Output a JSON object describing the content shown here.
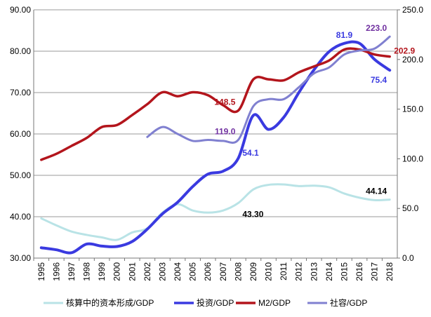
{
  "chart_data": {
    "type": "line",
    "title": "",
    "x": [
      "1995",
      "1996",
      "1997",
      "1998",
      "1999",
      "2000",
      "2001",
      "2002",
      "2003",
      "2004",
      "2005",
      "2006",
      "2007",
      "2008",
      "2009",
      "2010",
      "2011",
      "2012",
      "2013",
      "2014",
      "2015",
      "2016",
      "2017",
      "2018"
    ],
    "y_left": {
      "min": 30,
      "max": 90,
      "ticks": [
        "30.00",
        "40.00",
        "50.00",
        "60.00",
        "70.00",
        "80.00",
        "90.00"
      ],
      "tick_values": [
        30,
        40,
        50,
        60,
        70,
        80,
        90
      ]
    },
    "y_right": {
      "min": 0,
      "max": 250,
      "ticks": [
        "0.0",
        "50.0",
        "100.0",
        "150.0",
        "200.0",
        "250.0"
      ],
      "tick_values": [
        0,
        50,
        100,
        150,
        200,
        250
      ]
    },
    "grid": true,
    "legend_position": "bottom",
    "series": [
      {
        "name": "核算中的资本形成/GDP",
        "axis": "left",
        "color": "#b9e3e6",
        "values": [
          39.6,
          37.9,
          36.4,
          35.6,
          35.0,
          34.4,
          36.2,
          37.2,
          41.0,
          43.0,
          41.5,
          41.0,
          41.5,
          43.3,
          46.6,
          47.7,
          47.8,
          47.4,
          47.5,
          47.1,
          45.6,
          44.6,
          44.0,
          44.14
        ]
      },
      {
        "name": "投资/GDP",
        "axis": "left",
        "color": "#3a3ae0",
        "values": [
          32.5,
          32.0,
          31.3,
          33.4,
          32.9,
          32.8,
          34.0,
          37.0,
          40.7,
          43.5,
          47.3,
          50.3,
          51.0,
          54.1,
          64.5,
          61.1,
          64.0,
          70.0,
          75.5,
          79.9,
          81.9,
          81.9,
          78.0,
          75.4
        ]
      },
      {
        "name": "M2/GDP",
        "axis": "right",
        "color": "#b3151c",
        "values": [
          99,
          105,
          113,
          121,
          132,
          134,
          144,
          155,
          167,
          163,
          167,
          164,
          154,
          148.5,
          180,
          180,
          179,
          187,
          193,
          199,
          210,
          210,
          205,
          202.9
        ]
      },
      {
        "name": "社容/GDP",
        "axis": "right",
        "color": "#8080d0",
        "values": [
          null,
          null,
          null,
          null,
          null,
          null,
          null,
          122,
          132,
          125,
          118,
          119,
          118,
          119.0,
          153,
          160,
          160,
          172,
          186,
          192,
          205,
          209,
          211,
          223.0
        ]
      }
    ],
    "annotations": [
      {
        "text": "81.9",
        "series": "投资/GDP",
        "index": 20,
        "color": "#3a3ae0",
        "pos": "above"
      },
      {
        "text": "75.4",
        "series": "投资/GDP",
        "index": 23,
        "color": "#3a3ae0",
        "pos": "below-left"
      },
      {
        "text": "54.1",
        "series": "投资/GDP",
        "index": 13,
        "color": "#3a3ae0",
        "pos": "right"
      },
      {
        "text": "43.30",
        "series": "核算中的资本形成/GDP",
        "index": 13,
        "color": "#000000",
        "pos": "below-right"
      },
      {
        "text": "44.14",
        "series": "核算中的资本形成/GDP",
        "index": 23,
        "color": "#000000",
        "pos": "above-left"
      },
      {
        "text": "148.5",
        "series": "M2/GDP",
        "index": 13,
        "color": "#b3151c",
        "pos": "above-left"
      },
      {
        "text": "202.9",
        "series": "M2/GDP",
        "index": 23,
        "color": "#b3151c",
        "pos": "right"
      },
      {
        "text": "119.0",
        "series": "社容/GDP",
        "index": 13,
        "color": "#7030a0",
        "pos": "above-left"
      },
      {
        "text": "223.0",
        "series": "社容/GDP",
        "index": 23,
        "color": "#7030a0",
        "pos": "above-left"
      }
    ]
  }
}
